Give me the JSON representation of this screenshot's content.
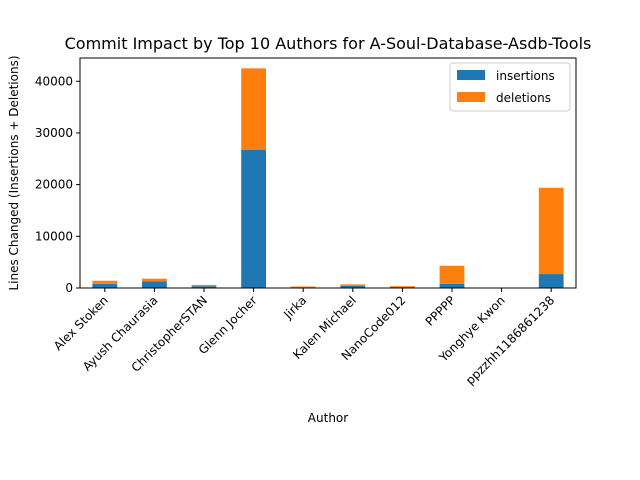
{
  "chart_data": {
    "type": "bar",
    "stacked": true,
    "title": "Commit Impact by Top 10 Authors for A-Soul-Database-Asdb-Tools",
    "xlabel": "Author",
    "ylabel": "Lines Changed (Insertions + Deletions)",
    "categories": [
      "Alex Stoken",
      "Ayush Chaurasia",
      "ChristopherSTAN",
      "Glenn Jocher",
      "Jirka",
      "Kalen Michael",
      "NanoCode012",
      "PPPPP",
      "Yonghye Kwon",
      "ppzzhh1186861238"
    ],
    "series": [
      {
        "name": "insertions",
        "color": "#1f77b4",
        "values": [
          800,
          1300,
          350,
          26700,
          150,
          450,
          180,
          800,
          30,
          2700
        ]
      },
      {
        "name": "deletions",
        "color": "#ff7f0e",
        "values": [
          600,
          500,
          250,
          15800,
          150,
          250,
          170,
          3500,
          20,
          16700
        ]
      }
    ],
    "ylim": [
      0,
      44500
    ],
    "yticks": [
      0,
      10000,
      20000,
      30000,
      40000
    ],
    "grid": false,
    "legend_position": "top-right"
  }
}
